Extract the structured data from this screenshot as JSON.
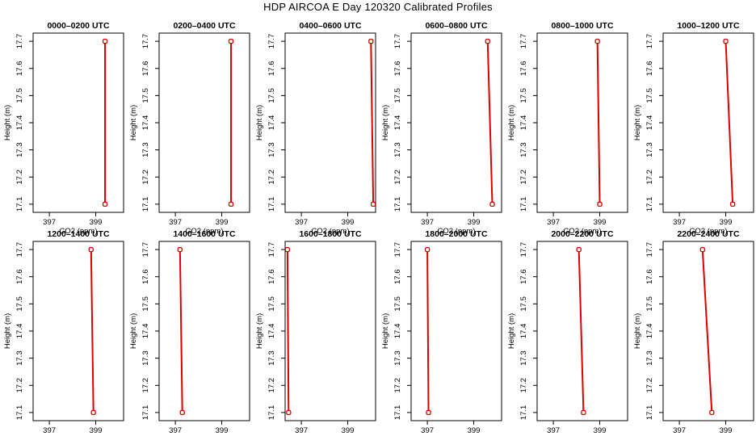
{
  "title": "HDP AIRCOA E  Day 120320  Calibrated Profiles",
  "style": {
    "line_color": "#dd0000",
    "marker_color": "#dd0000",
    "axis_color": "#000000"
  },
  "chart_data": [
    {
      "type": "line",
      "title": "0000–0200 UTC",
      "xlabel": "CO2 (ppm)",
      "ylabel": "Height (m)",
      "xlim": [
        396.3,
        400.2
      ],
      "ylim": [
        17.07,
        17.73
      ],
      "xticks": [
        "397",
        "399"
      ],
      "xtick_values": [
        397,
        399
      ],
      "yticks": [
        "17.1",
        "17.2",
        "17.3",
        "17.4",
        "17.5",
        "17.6",
        "17.7"
      ],
      "ytick_values": [
        17.1,
        17.2,
        17.3,
        17.4,
        17.5,
        17.6,
        17.7
      ],
      "series": [
        {
          "x": [
            399.4,
            399.4
          ],
          "y": [
            17.7,
            17.1
          ]
        }
      ]
    },
    {
      "type": "line",
      "title": "0200–0400 UTC",
      "xlabel": "CO2 (ppm)",
      "ylabel": "Height (m)",
      "xlim": [
        396.3,
        400.2
      ],
      "ylim": [
        17.07,
        17.73
      ],
      "xticks": [
        "397",
        "399"
      ],
      "xtick_values": [
        397,
        399
      ],
      "yticks": [
        "17.1",
        "17.2",
        "17.3",
        "17.4",
        "17.5",
        "17.6",
        "17.7"
      ],
      "ytick_values": [
        17.1,
        17.2,
        17.3,
        17.4,
        17.5,
        17.6,
        17.7
      ],
      "series": [
        {
          "x": [
            399.4,
            399.4
          ],
          "y": [
            17.7,
            17.1
          ]
        }
      ]
    },
    {
      "type": "line",
      "title": "0400–0600 UTC",
      "xlabel": "CO2 (ppm)",
      "ylabel": "Height (m)",
      "xlim": [
        396.3,
        400.2
      ],
      "ylim": [
        17.07,
        17.73
      ],
      "xticks": [
        "397",
        "399"
      ],
      "xtick_values": [
        397,
        399
      ],
      "yticks": [
        "17.1",
        "17.2",
        "17.3",
        "17.4",
        "17.5",
        "17.6",
        "17.7"
      ],
      "ytick_values": [
        17.1,
        17.2,
        17.3,
        17.4,
        17.5,
        17.6,
        17.7
      ],
      "series": [
        {
          "x": [
            400.0,
            400.1
          ],
          "y": [
            17.7,
            17.1
          ]
        }
      ]
    },
    {
      "type": "line",
      "title": "0600–0800 UTC",
      "xlabel": "CO2 (ppm)",
      "ylabel": "Height (m)",
      "xlim": [
        396.3,
        400.2
      ],
      "ylim": [
        17.07,
        17.73
      ],
      "xticks": [
        "397",
        "399"
      ],
      "xtick_values": [
        397,
        399
      ],
      "yticks": [
        "17.1",
        "17.2",
        "17.3",
        "17.4",
        "17.5",
        "17.6",
        "17.7"
      ],
      "ytick_values": [
        17.1,
        17.2,
        17.3,
        17.4,
        17.5,
        17.6,
        17.7
      ],
      "series": [
        {
          "x": [
            399.6,
            399.8
          ],
          "y": [
            17.7,
            17.1
          ]
        }
      ]
    },
    {
      "type": "line",
      "title": "0800–1000 UTC",
      "xlabel": "CO2 (ppm)",
      "ylabel": "Height (m)",
      "xlim": [
        396.3,
        400.2
      ],
      "ylim": [
        17.07,
        17.73
      ],
      "xticks": [
        "397",
        "399"
      ],
      "xtick_values": [
        397,
        399
      ],
      "yticks": [
        "17.1",
        "17.2",
        "17.3",
        "17.4",
        "17.5",
        "17.6",
        "17.7"
      ],
      "ytick_values": [
        17.1,
        17.2,
        17.3,
        17.4,
        17.5,
        17.6,
        17.7
      ],
      "series": [
        {
          "x": [
            398.9,
            399.0
          ],
          "y": [
            17.7,
            17.1
          ]
        }
      ]
    },
    {
      "type": "line",
      "title": "1000–1200 UTC",
      "xlabel": "CO2 (ppm)",
      "ylabel": "Height (m)",
      "xlim": [
        396.3,
        400.2
      ],
      "ylim": [
        17.07,
        17.73
      ],
      "xticks": [
        "397",
        "399"
      ],
      "xtick_values": [
        397,
        399
      ],
      "yticks": [
        "17.1",
        "17.2",
        "17.3",
        "17.4",
        "17.5",
        "17.6",
        "17.7"
      ],
      "ytick_values": [
        17.1,
        17.2,
        17.3,
        17.4,
        17.5,
        17.6,
        17.7
      ],
      "series": [
        {
          "x": [
            399.0,
            399.3
          ],
          "y": [
            17.7,
            17.1
          ]
        }
      ]
    },
    {
      "type": "line",
      "title": "1200–1400 UTC",
      "xlabel": "CO2 (ppm)",
      "ylabel": "Height (m)",
      "xlim": [
        396.3,
        400.2
      ],
      "ylim": [
        17.07,
        17.73
      ],
      "xticks": [
        "397",
        "399"
      ],
      "xtick_values": [
        397,
        399
      ],
      "yticks": [
        "17.1",
        "17.2",
        "17.3",
        "17.4",
        "17.5",
        "17.6",
        "17.7"
      ],
      "ytick_values": [
        17.1,
        17.2,
        17.3,
        17.4,
        17.5,
        17.6,
        17.7
      ],
      "series": [
        {
          "x": [
            398.8,
            398.9
          ],
          "y": [
            17.7,
            17.1
          ]
        }
      ]
    },
    {
      "type": "line",
      "title": "1400–1600 UTC",
      "xlabel": "CO2 (ppm)",
      "ylabel": "Height (m)",
      "xlim": [
        396.3,
        400.2
      ],
      "ylim": [
        17.07,
        17.73
      ],
      "xticks": [
        "397",
        "399"
      ],
      "xtick_values": [
        397,
        399
      ],
      "yticks": [
        "17.1",
        "17.2",
        "17.3",
        "17.4",
        "17.5",
        "17.6",
        "17.7"
      ],
      "ytick_values": [
        17.1,
        17.2,
        17.3,
        17.4,
        17.5,
        17.6,
        17.7
      ],
      "series": [
        {
          "x": [
            397.2,
            397.3
          ],
          "y": [
            17.7,
            17.1
          ]
        }
      ]
    },
    {
      "type": "line",
      "title": "1600–1800 UTC",
      "xlabel": "CO2 (ppm)",
      "ylabel": "Height (m)",
      "xlim": [
        396.3,
        400.2
      ],
      "ylim": [
        17.07,
        17.73
      ],
      "xticks": [
        "397",
        "399"
      ],
      "xtick_values": [
        397,
        399
      ],
      "yticks": [
        "17.1",
        "17.2",
        "17.3",
        "17.4",
        "17.5",
        "17.6",
        "17.7"
      ],
      "ytick_values": [
        17.1,
        17.2,
        17.3,
        17.4,
        17.5,
        17.6,
        17.7
      ],
      "series": [
        {
          "x": [
            396.4,
            396.45
          ],
          "y": [
            17.7,
            17.1
          ]
        }
      ]
    },
    {
      "type": "line",
      "title": "1800–2000 UTC",
      "xlabel": "CO2 (ppm)",
      "ylabel": "Height (m)",
      "xlim": [
        396.3,
        400.2
      ],
      "ylim": [
        17.07,
        17.73
      ],
      "xticks": [
        "397",
        "399"
      ],
      "xtick_values": [
        397,
        399
      ],
      "yticks": [
        "17.1",
        "17.2",
        "17.3",
        "17.4",
        "17.5",
        "17.6",
        "17.7"
      ],
      "ytick_values": [
        17.1,
        17.2,
        17.3,
        17.4,
        17.5,
        17.6,
        17.7
      ],
      "series": [
        {
          "x": [
            397.0,
            397.05
          ],
          "y": [
            17.7,
            17.1
          ]
        }
      ]
    },
    {
      "type": "line",
      "title": "2000–2200 UTC",
      "xlabel": "CO2 (ppm)",
      "ylabel": "Height (m)",
      "xlim": [
        396.3,
        400.2
      ],
      "ylim": [
        17.07,
        17.73
      ],
      "xticks": [
        "397",
        "399"
      ],
      "xtick_values": [
        397,
        399
      ],
      "yticks": [
        "17.1",
        "17.2",
        "17.3",
        "17.4",
        "17.5",
        "17.6",
        "17.7"
      ],
      "ytick_values": [
        17.1,
        17.2,
        17.3,
        17.4,
        17.5,
        17.6,
        17.7
      ],
      "series": [
        {
          "x": [
            398.1,
            398.3
          ],
          "y": [
            17.7,
            17.1
          ]
        }
      ]
    },
    {
      "type": "line",
      "title": "2200–2400 UTC",
      "xlabel": "CO2 (ppm)",
      "ylabel": "Height (m)",
      "xlim": [
        396.3,
        400.2
      ],
      "ylim": [
        17.07,
        17.73
      ],
      "xticks": [
        "397",
        "399"
      ],
      "xtick_values": [
        397,
        399
      ],
      "yticks": [
        "17.1",
        "17.2",
        "17.3",
        "17.4",
        "17.5",
        "17.6",
        "17.7"
      ],
      "ytick_values": [
        17.1,
        17.2,
        17.3,
        17.4,
        17.5,
        17.6,
        17.7
      ],
      "series": [
        {
          "x": [
            398.0,
            398.4
          ],
          "y": [
            17.7,
            17.1
          ]
        }
      ]
    }
  ]
}
